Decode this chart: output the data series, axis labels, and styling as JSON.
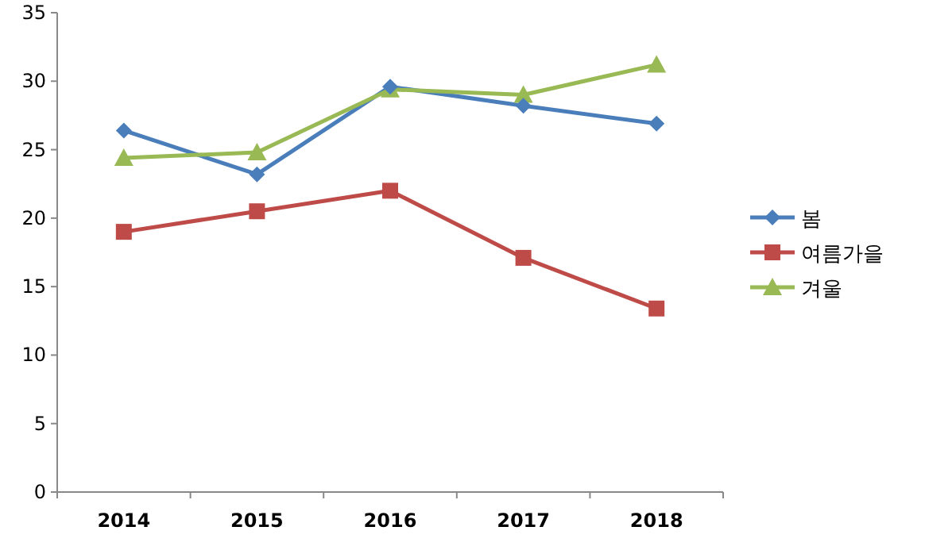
{
  "chart_data": {
    "type": "line",
    "categories": [
      "2014",
      "2015",
      "2016",
      "2017",
      "2018"
    ],
    "series": [
      {
        "name": "봄",
        "color": "#4a7ebb",
        "marker": "diamond",
        "values": [
          26.4,
          23.2,
          29.6,
          28.2,
          26.9
        ]
      },
      {
        "name": "여름가을",
        "color": "#be4b48",
        "marker": "square",
        "values": [
          19.0,
          20.5,
          22.0,
          17.1,
          13.4
        ]
      },
      {
        "name": "겨울",
        "color": "#98b954",
        "marker": "triangle",
        "values": [
          24.4,
          24.8,
          29.4,
          29.0,
          31.2
        ]
      }
    ],
    "ylim": [
      0,
      35
    ],
    "yticks": [
      0,
      5,
      10,
      15,
      20,
      25,
      30,
      35
    ],
    "grid": false,
    "legend": "right"
  }
}
